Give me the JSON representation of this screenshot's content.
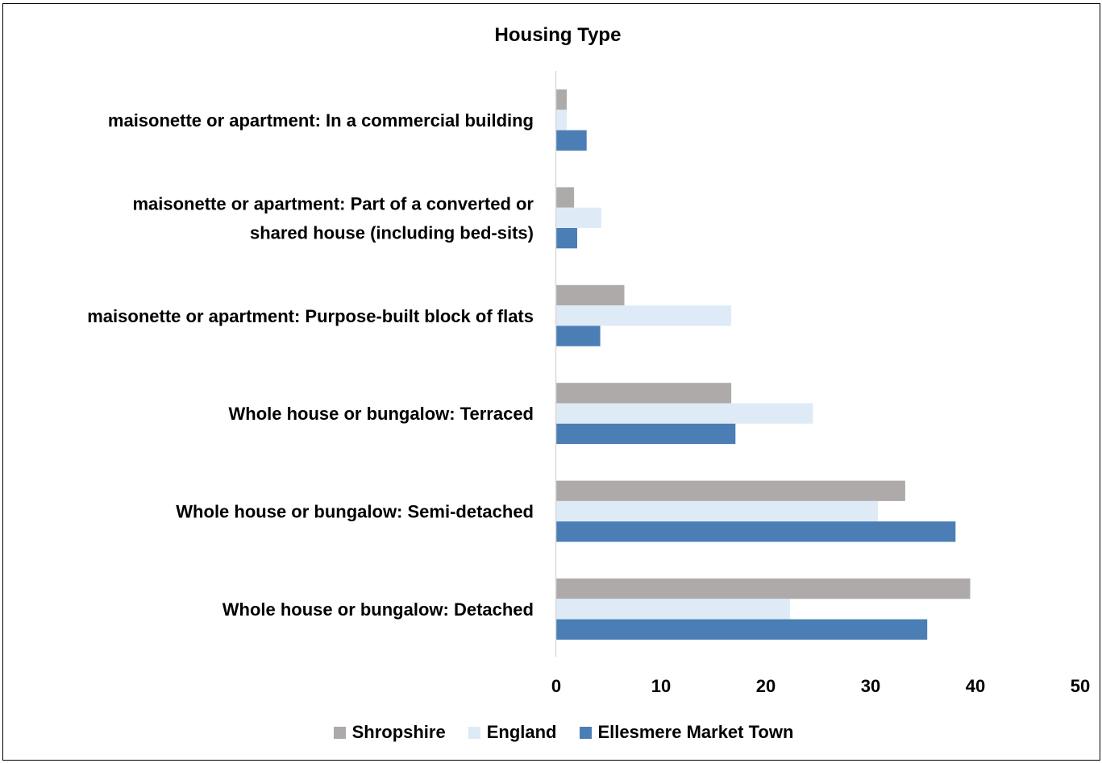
{
  "chart_data": {
    "type": "bar",
    "orientation": "horizontal",
    "title": "Housing Type",
    "categories": [
      [
        "maisonette or apartment: In a commercial building"
      ],
      [
        "maisonette or apartment: Part of a converted or",
        "shared house (including bed-sits)"
      ],
      [
        "maisonette or apartment: Purpose-built block of flats"
      ],
      [
        "Whole house or bungalow: Terraced"
      ],
      [
        "Whole house or bungalow: Semi-detached"
      ],
      [
        "Whole house or bungalow: Detached"
      ]
    ],
    "series": [
      {
        "name": "Shropshire",
        "color": "#aeaaaa",
        "values": [
          1.0,
          1.7,
          6.5,
          16.7,
          33.3,
          39.5
        ]
      },
      {
        "name": "England",
        "color": "#deebf7",
        "values": [
          1.0,
          4.3,
          16.7,
          24.5,
          30.7,
          22.3
        ]
      },
      {
        "name": "Ellesmere Market Town",
        "color": "#4a7eb5",
        "values": [
          2.9,
          2.0,
          4.2,
          17.1,
          38.1,
          35.4
        ]
      }
    ],
    "xlim": [
      0,
      50
    ],
    "xticks": [
      "0",
      "10",
      "20",
      "30",
      "40",
      "50"
    ],
    "grid": false,
    "legend_position": "bottom"
  }
}
